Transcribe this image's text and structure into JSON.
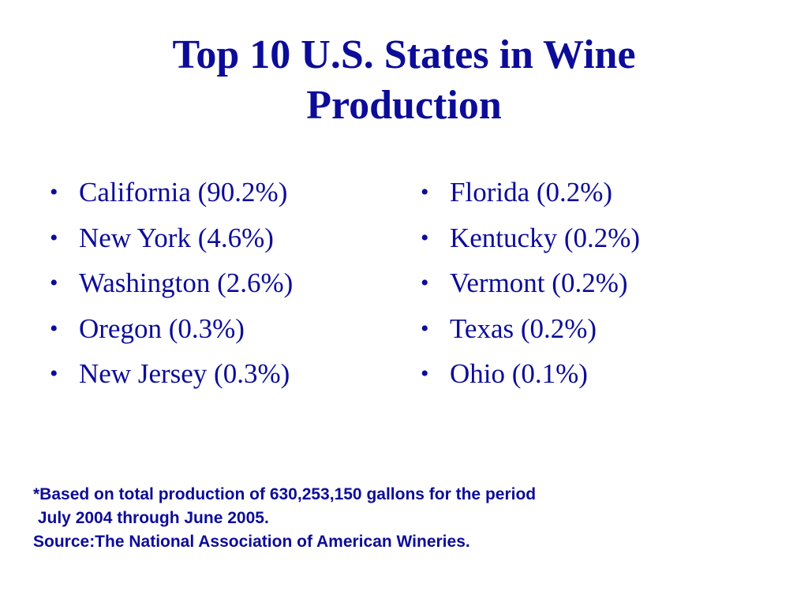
{
  "title": {
    "line1": "Top 10 U.S. States in Wine",
    "line2": "Production"
  },
  "left_list": [
    "California (90.2%)",
    "New York (4.6%)",
    "Washington (2.6%)",
    "Oregon (0.3%)",
    "New Jersey (0.3%)"
  ],
  "right_list": [
    "Florida (0.2%)",
    "Kentucky (0.2%)",
    "Vermont (0.2%)",
    "Texas (0.2%)",
    "Ohio (0.1%)"
  ],
  "bullet_char": "•",
  "footnote": {
    "line1": "*Based on total production of 630,253,150 gallons for the period",
    "line2": " July 2004 through June 2005.",
    "line3": "Source:The National Association of American Wineries."
  },
  "colors": {
    "text": "#0c0c99",
    "background": "#ffffff"
  }
}
